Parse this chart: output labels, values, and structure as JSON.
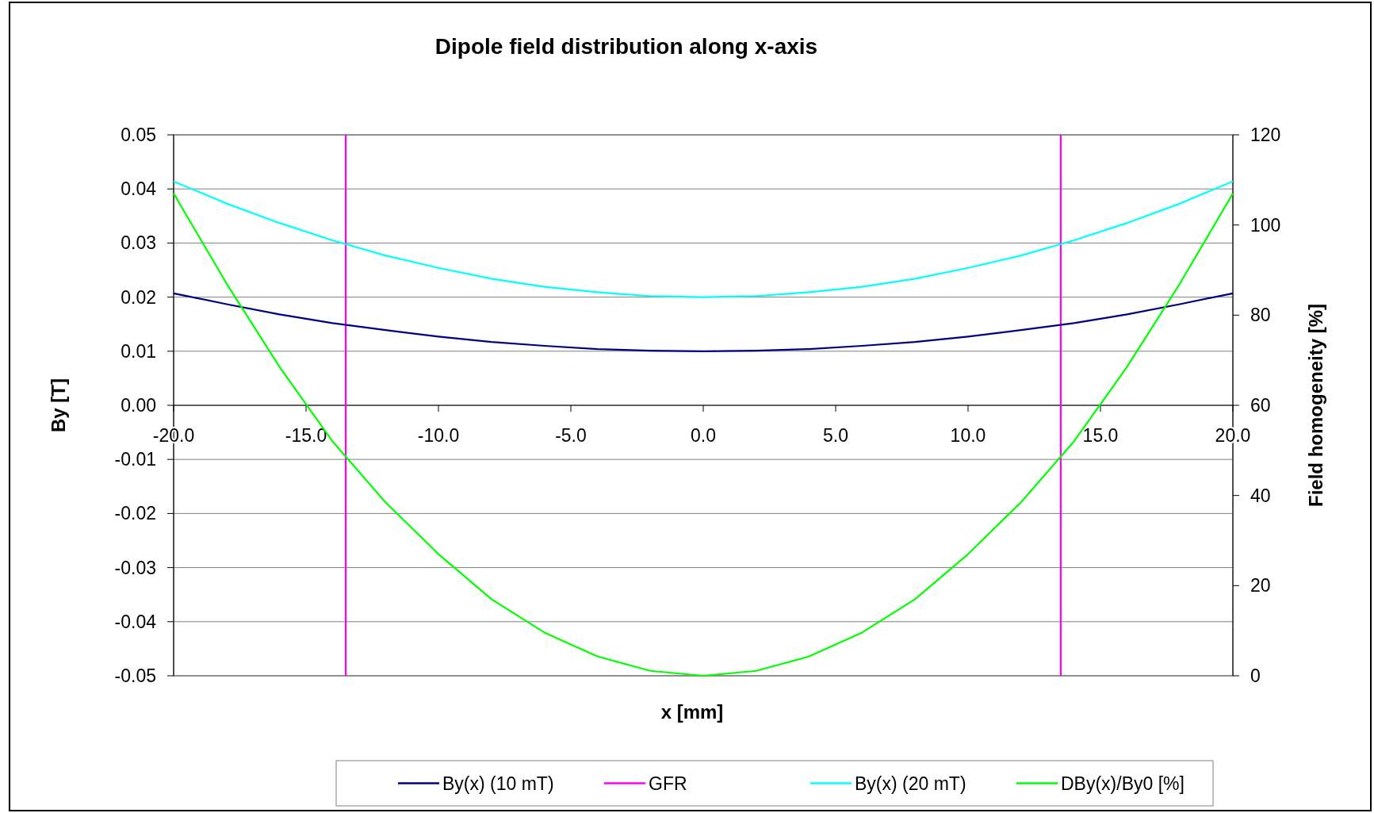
{
  "chart_data": {
    "type": "line",
    "title": "Dipole field distribution along x-axis",
    "xlabel": "x [mm]",
    "ylabel": "By [T]",
    "y2label": "Field homogeneity [%]",
    "x": [
      -20,
      -18,
      -16,
      -14,
      -12,
      -10,
      -8,
      -6,
      -4,
      -2,
      0,
      2,
      4,
      6,
      8,
      10,
      12,
      14,
      16,
      18,
      20
    ],
    "series": [
      {
        "name": "By(x) (10 mT)",
        "color": "#000080",
        "values": [
          0.0207,
          0.0187,
          0.0168,
          0.0152,
          0.0139,
          0.0127,
          0.0117,
          0.011,
          0.0104,
          0.0101,
          0.01,
          0.0101,
          0.0104,
          0.011,
          0.0117,
          0.0127,
          0.0139,
          0.0152,
          0.0168,
          0.0187,
          0.0207
        ]
      },
      {
        "name": "By(x) (20 mT)",
        "color": "#00ffff",
        "values": [
          0.0414,
          0.0373,
          0.0337,
          0.0305,
          0.0277,
          0.0254,
          0.0234,
          0.0219,
          0.0209,
          0.0202,
          0.02,
          0.0202,
          0.0209,
          0.0219,
          0.0234,
          0.0254,
          0.0277,
          0.0305,
          0.0337,
          0.0373,
          0.0414
        ]
      },
      {
        "name": "DBy(x)/By0 [%]",
        "color": "#00ff00",
        "axis": "y2",
        "values": [
          107,
          87,
          68.5,
          52,
          38.5,
          27,
          17,
          9.6,
          4.3,
          1.1,
          0,
          1.1,
          4.3,
          9.6,
          17,
          27,
          38.5,
          52,
          68.5,
          87,
          107
        ]
      }
    ],
    "xlim": [
      -20,
      20
    ],
    "xticks": [
      {
        "value": -20,
        "label": "-20.0"
      },
      {
        "value": -15,
        "label": "-15.0"
      },
      {
        "value": -10,
        "label": "-10.0"
      },
      {
        "value": -5,
        "label": "-5.0"
      },
      {
        "value": 0,
        "label": "0.0"
      },
      {
        "value": 5,
        "label": "5.0"
      },
      {
        "value": 10,
        "label": "10.0"
      },
      {
        "value": 15,
        "label": "15.0"
      },
      {
        "value": 20,
        "label": "20.0"
      }
    ],
    "ylim": [
      -0.05,
      0.05
    ],
    "yticks": [
      {
        "value": -0.05,
        "label": "-0.05"
      },
      {
        "value": -0.04,
        "label": "-0.04"
      },
      {
        "value": -0.03,
        "label": "-0.03"
      },
      {
        "value": -0.02,
        "label": "-0.02"
      },
      {
        "value": -0.01,
        "label": "-0.01"
      },
      {
        "value": 0,
        "label": "0.00"
      },
      {
        "value": 0.01,
        "label": "0.01"
      },
      {
        "value": 0.02,
        "label": "0.02"
      },
      {
        "value": 0.03,
        "label": "0.03"
      },
      {
        "value": 0.04,
        "label": "0.04"
      },
      {
        "value": 0.05,
        "label": "0.05"
      }
    ],
    "y2lim": [
      0,
      120
    ],
    "y2ticks": [
      0,
      20,
      40,
      60,
      80,
      100,
      120
    ],
    "ref_lines": [
      {
        "axis": "x",
        "value": -13.5,
        "label": "GFR",
        "color": "#ff00ff"
      },
      {
        "axis": "x",
        "value": 13.5,
        "color": "#ff00ff"
      }
    ],
    "grid": "y",
    "legend": "bottom",
    "marker": "none",
    "line_style": "solid"
  }
}
